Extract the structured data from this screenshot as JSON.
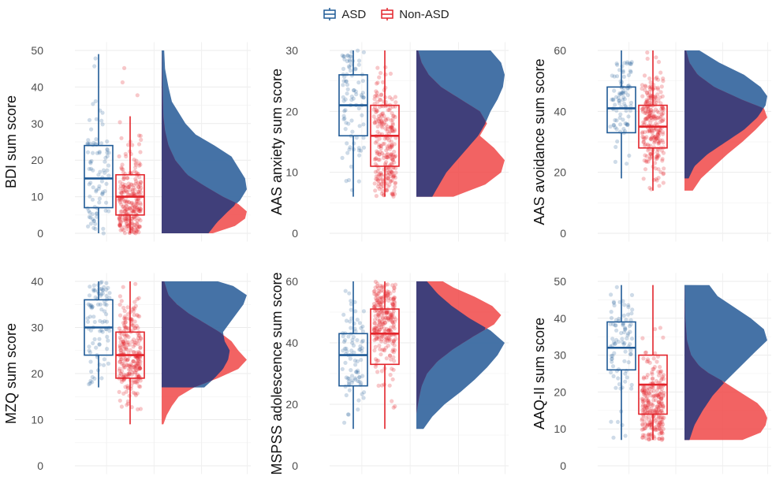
{
  "legend": {
    "items": [
      {
        "label": "ASD",
        "color": "#1f5a96",
        "fill": "#3b6aa1"
      },
      {
        "label": "Non-ASD",
        "color": "#e3242b",
        "fill": "#f04848"
      }
    ]
  },
  "chart_data": [
    {
      "type": "raincloud",
      "ylabel": "BDI sum score",
      "ylim": [
        0,
        50
      ],
      "ticks": [
        0,
        10,
        20,
        30,
        40,
        50
      ],
      "series": [
        {
          "name": "ASD",
          "box": {
            "min": 0,
            "q1": 7,
            "median": 15,
            "q3": 24,
            "max": 49
          },
          "range": [
            0,
            50
          ],
          "density": [
            [
              0,
              0.55
            ],
            [
              3,
              0.65
            ],
            [
              6,
              0.78
            ],
            [
              9,
              0.92
            ],
            [
              12,
              1.0
            ],
            [
              15,
              0.98
            ],
            [
              18,
              0.9
            ],
            [
              21,
              0.82
            ],
            [
              24,
              0.62
            ],
            [
              27,
              0.4
            ],
            [
              30,
              0.28
            ],
            [
              33,
              0.2
            ],
            [
              36,
              0.12
            ],
            [
              40,
              0.08
            ],
            [
              45,
              0.04
            ],
            [
              50,
              0.03
            ]
          ]
        },
        {
          "name": "Non-ASD",
          "box": {
            "min": 0,
            "q1": 5,
            "median": 10,
            "q3": 16,
            "max": 32
          },
          "range": [
            0,
            50
          ],
          "density": [
            [
              0,
              0.6
            ],
            [
              2,
              0.86
            ],
            [
              4,
              0.98
            ],
            [
              6,
              1.0
            ],
            [
              8,
              0.9
            ],
            [
              10,
              0.72
            ],
            [
              13,
              0.5
            ],
            [
              16,
              0.3
            ],
            [
              20,
              0.16
            ],
            [
              24,
              0.08
            ],
            [
              28,
              0.04
            ],
            [
              32,
              0.02
            ],
            [
              40,
              0.01
            ],
            [
              50,
              0.0
            ]
          ]
        }
      ]
    },
    {
      "type": "raincloud",
      "ylabel": "AAS anxiety sum score",
      "ylim": [
        0,
        30
      ],
      "ticks": [
        0,
        10,
        20,
        30
      ],
      "series": [
        {
          "name": "ASD",
          "box": {
            "min": 6,
            "q1": 16,
            "median": 21,
            "q3": 26,
            "max": 30
          },
          "range": [
            6,
            30
          ],
          "density": [
            [
              6,
              0.18
            ],
            [
              8,
              0.26
            ],
            [
              10,
              0.34
            ],
            [
              12,
              0.46
            ],
            [
              14,
              0.58
            ],
            [
              16,
              0.7
            ],
            [
              18,
              0.78
            ],
            [
              20,
              0.84
            ],
            [
              22,
              0.92
            ],
            [
              24,
              0.98
            ],
            [
              26,
              1.0
            ],
            [
              28,
              0.96
            ],
            [
              30,
              0.84
            ]
          ]
        },
        {
          "name": "Non-ASD",
          "box": {
            "min": 6,
            "q1": 11,
            "median": 16,
            "q3": 21,
            "max": 30
          },
          "range": [
            6,
            30
          ],
          "density": [
            [
              6,
              0.42
            ],
            [
              8,
              0.78
            ],
            [
              10,
              0.96
            ],
            [
              12,
              1.0
            ],
            [
              14,
              0.88
            ],
            [
              16,
              0.72
            ],
            [
              18,
              0.8
            ],
            [
              20,
              0.72
            ],
            [
              22,
              0.5
            ],
            [
              24,
              0.28
            ],
            [
              26,
              0.14
            ],
            [
              28,
              0.06
            ],
            [
              30,
              0.02
            ]
          ]
        }
      ]
    },
    {
      "type": "raincloud",
      "ylabel": "AAS avoidance sum score",
      "ylim": [
        0,
        60
      ],
      "ticks": [
        0,
        20,
        40,
        60
      ],
      "series": [
        {
          "name": "ASD",
          "box": {
            "min": 18,
            "q1": 33,
            "median": 41,
            "q3": 48,
            "max": 60
          },
          "range": [
            18,
            60
          ],
          "density": [
            [
              18,
              0.05
            ],
            [
              22,
              0.12
            ],
            [
              26,
              0.28
            ],
            [
              30,
              0.5
            ],
            [
              34,
              0.72
            ],
            [
              38,
              0.88
            ],
            [
              42,
              0.98
            ],
            [
              45,
              1.0
            ],
            [
              48,
              0.92
            ],
            [
              52,
              0.72
            ],
            [
              56,
              0.42
            ],
            [
              60,
              0.18
            ]
          ]
        },
        {
          "name": "Non-ASD",
          "box": {
            "min": 14,
            "q1": 28,
            "median": 35,
            "q3": 42,
            "max": 60
          },
          "range": [
            14,
            60
          ],
          "density": [
            [
              14,
              0.1
            ],
            [
              18,
              0.2
            ],
            [
              22,
              0.36
            ],
            [
              26,
              0.52
            ],
            [
              30,
              0.7
            ],
            [
              34,
              0.86
            ],
            [
              38,
              1.0
            ],
            [
              41,
              0.96
            ],
            [
              44,
              0.68
            ],
            [
              48,
              0.36
            ],
            [
              52,
              0.16
            ],
            [
              56,
              0.06
            ],
            [
              60,
              0.02
            ]
          ]
        }
      ]
    },
    {
      "type": "raincloud",
      "ylabel": "MZQ sum score",
      "ylim": [
        0,
        40
      ],
      "ticks": [
        0,
        10,
        20,
        30,
        40
      ],
      "series": [
        {
          "name": "ASD",
          "box": {
            "min": 17,
            "q1": 24,
            "median": 30,
            "q3": 36,
            "max": 40
          },
          "range": [
            17,
            40
          ],
          "density": [
            [
              17,
              0.5
            ],
            [
              19,
              0.62
            ],
            [
              21,
              0.72
            ],
            [
              23,
              0.78
            ],
            [
              25,
              0.8
            ],
            [
              27,
              0.74
            ],
            [
              29,
              0.72
            ],
            [
              31,
              0.8
            ],
            [
              33,
              0.88
            ],
            [
              35,
              0.96
            ],
            [
              37,
              1.0
            ],
            [
              39,
              0.84
            ],
            [
              40,
              0.66
            ]
          ]
        },
        {
          "name": "Non-ASD",
          "box": {
            "min": 9,
            "q1": 19,
            "median": 24,
            "q3": 29,
            "max": 40
          },
          "range": [
            9,
            40
          ],
          "density": [
            [
              9,
              0.02
            ],
            [
              11,
              0.06
            ],
            [
              13,
              0.12
            ],
            [
              15,
              0.2
            ],
            [
              17,
              0.38
            ],
            [
              19,
              0.66
            ],
            [
              21,
              0.9
            ],
            [
              23,
              1.0
            ],
            [
              25,
              0.9
            ],
            [
              27,
              0.82
            ],
            [
              29,
              0.68
            ],
            [
              31,
              0.5
            ],
            [
              33,
              0.32
            ],
            [
              35,
              0.18
            ],
            [
              37,
              0.08
            ],
            [
              40,
              0.03
            ]
          ]
        }
      ]
    },
    {
      "type": "raincloud",
      "ylabel": "MSPSS adolescence sum score",
      "ylim": [
        0,
        60
      ],
      "ticks": [
        0,
        20,
        40,
        60
      ],
      "series": [
        {
          "name": "ASD",
          "box": {
            "min": 12,
            "q1": 26,
            "median": 36,
            "q3": 43,
            "max": 60
          },
          "range": [
            12,
            60
          ],
          "density": [
            [
              12,
              0.08
            ],
            [
              16,
              0.18
            ],
            [
              20,
              0.32
            ],
            [
              24,
              0.5
            ],
            [
              28,
              0.66
            ],
            [
              32,
              0.8
            ],
            [
              36,
              0.92
            ],
            [
              40,
              1.0
            ],
            [
              44,
              0.84
            ],
            [
              48,
              0.6
            ],
            [
              52,
              0.4
            ],
            [
              56,
              0.24
            ],
            [
              60,
              0.12
            ]
          ]
        },
        {
          "name": "Non-ASD",
          "box": {
            "min": 12,
            "q1": 33,
            "median": 43,
            "q3": 51,
            "max": 60
          },
          "range": [
            17,
            60
          ],
          "density": [
            [
              17,
              0.0
            ],
            [
              22,
              0.03
            ],
            [
              26,
              0.06
            ],
            [
              30,
              0.12
            ],
            [
              34,
              0.24
            ],
            [
              38,
              0.42
            ],
            [
              42,
              0.64
            ],
            [
              46,
              0.88
            ],
            [
              49,
              0.96
            ],
            [
              52,
              0.86
            ],
            [
              55,
              0.66
            ],
            [
              58,
              0.42
            ],
            [
              60,
              0.3
            ]
          ]
        }
      ]
    },
    {
      "type": "raincloud",
      "ylabel": "AAQ-II sum score",
      "ylim": [
        0,
        50
      ],
      "ticks": [
        0,
        10,
        20,
        30,
        40,
        50
      ],
      "series": [
        {
          "name": "ASD",
          "box": {
            "min": 7,
            "q1": 26,
            "median": 32,
            "q3": 39,
            "max": 49
          },
          "range": [
            7,
            49
          ],
          "density": [
            [
              7,
              0.06
            ],
            [
              11,
              0.12
            ],
            [
              15,
              0.22
            ],
            [
              19,
              0.34
            ],
            [
              23,
              0.5
            ],
            [
              27,
              0.68
            ],
            [
              31,
              0.86
            ],
            [
              34,
              1.0
            ],
            [
              37,
              0.96
            ],
            [
              40,
              0.8
            ],
            [
              43,
              0.6
            ],
            [
              46,
              0.4
            ],
            [
              49,
              0.3
            ]
          ]
        },
        {
          "name": "Non-ASD",
          "box": {
            "min": 7,
            "q1": 14,
            "median": 22,
            "q3": 30,
            "max": 49
          },
          "range": [
            7,
            49
          ],
          "density": [
            [
              7,
              0.7
            ],
            [
              9,
              0.92
            ],
            [
              11,
              0.98
            ],
            [
              13,
              1.0
            ],
            [
              15,
              0.96
            ],
            [
              17,
              0.88
            ],
            [
              19,
              0.74
            ],
            [
              21,
              0.6
            ],
            [
              23,
              0.46
            ],
            [
              25,
              0.3
            ],
            [
              27,
              0.18
            ],
            [
              30,
              0.08
            ],
            [
              34,
              0.03
            ],
            [
              40,
              0.01
            ],
            [
              49,
              0.0
            ]
          ]
        }
      ]
    }
  ]
}
